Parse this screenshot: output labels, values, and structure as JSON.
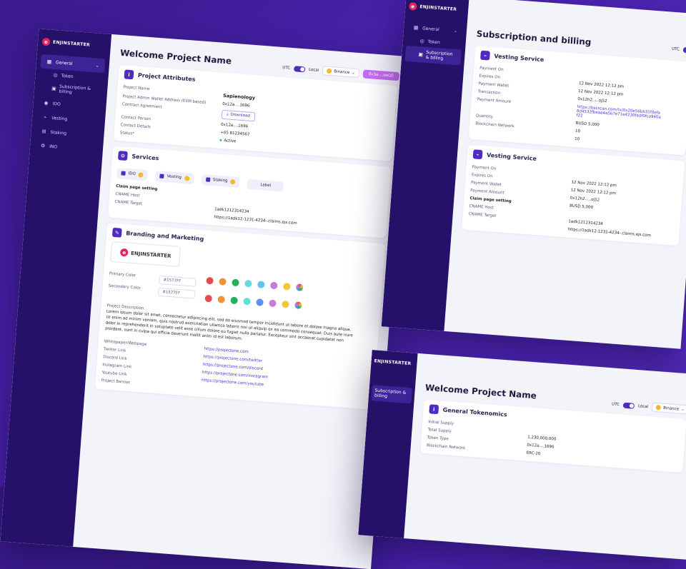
{
  "brand": "ENJINSTARTER",
  "nav": {
    "general": "General",
    "token": "Token",
    "subscription": "Subscription & billing",
    "ido": "IDO",
    "vesting": "Vesting",
    "staking": "Staking",
    "ino": "INO"
  },
  "header": {
    "utc": "UTC",
    "local": "Local",
    "network": "Binance",
    "wallet": "0x3a....oeQE"
  },
  "screen1": {
    "title": "Welcome Project Name",
    "attributes": {
      "heading": "Project Attributes",
      "labels": [
        "Project Name",
        "Project Admin Wallet Address (EVM based)",
        "Contract Agreement",
        "Contact Person",
        "Contact Details",
        "Status*"
      ],
      "project_name": "Sapienology",
      "wallet": "0x12a....1696",
      "download": "Download",
      "person": "0x12a....1696",
      "details": "+65 81234567",
      "status": "Active"
    },
    "services": {
      "heading": "Services",
      "items": [
        "IDO",
        "Vesting",
        "Staking",
        "Label"
      ],
      "claim_label": "Claim page setting",
      "cname_host_label": "CNAME Host",
      "cname_target_label": "CNAME Target",
      "cname_host": "1adk1212314234",
      "cname_target": "https://1adk12-1231-4234-.claims.ejs.com"
    },
    "branding": {
      "heading": "Branding and Marketing",
      "primary_label": "Primary Color",
      "secondary_label": "Secondary Color",
      "primary": "#1577FF",
      "secondary": "#1577FF",
      "desc_label": "Project Description",
      "description": "Lorem ipsum dolor sit amet, consectetur adipiscing elit, sed do eiusmod tempor incididunt ut labore et dolore magna aliqua. Ut enim ad minim veniam, quis nostrud exercitation ullamco laboris nisi ut aliquip ex ea commodo consequat. Duis aute irure dolor in reprehenderit in voluptate velit esse cillum dolore eu fugiat nulla pariatur. Excepteur sint occaecat cupidatat non proident, sunt in culpa qui officia deserunt mollit anim id est laborum.",
      "link_labels": [
        "Whitepaper/Webpage",
        "Twitter Link",
        "Discord Link",
        "Instagram Link",
        "Youtube Link",
        "Project Banner"
      ],
      "links": [
        "https://projectone.com",
        "https://projectone.com/twitter",
        "https://projectone.com/discord",
        "https://projectone.com/instagram",
        "https://projectone.com/youtube"
      ]
    },
    "palette1": [
      "#e74c4c",
      "#f0913c",
      "#27ae60",
      "#62d8e0",
      "#5bc8f0",
      "#c77ae0",
      "#f3c43c"
    ],
    "palette2": [
      "#e74c4c",
      "#f0913c",
      "#27ae60",
      "#62e0d0",
      "#5b8ff0",
      "#c77ae0",
      "#f3c43c"
    ]
  },
  "screen2": {
    "title": "Subscription and billing",
    "vesting1": {
      "heading": "Vesting Service",
      "labels": [
        "Payment On",
        "Expires On",
        "Payment Wallet",
        "Transaction",
        "Payment Amount",
        "Quantity",
        "Blockchain Network"
      ],
      "values": [
        "12 Nov 2022 12:12 pm",
        "12 Nov 2022 12:12 pm",
        "0x12h2.....oj52",
        "https://bscscan.com/tx/0x20e56bb31f0efa8d4532fbeae4a5b7e71e4230fadf0fca940af22",
        "BUSD 5,000",
        "10",
        "10"
      ]
    },
    "vesting2": {
      "heading": "Vesting Service",
      "labels": [
        "Payment On",
        "Expires On",
        "Payment Wallet",
        "Payment Amount",
        "Claim page setting",
        "CNAME Host",
        "CNAME Target"
      ],
      "values": [
        "12 Nov 2022 12:12 pm",
        "12 Nov 2022 12:12 pm",
        "0x12h2.....oj52",
        "BUSD 5,000",
        "",
        "1adk1212314234",
        "https://1adk12-1231-4234-.claims.ejs.com"
      ]
    }
  },
  "screen3": {
    "title": "Welcome Project Name",
    "heading": "General Tokenomics",
    "labels": [
      "Initial Supply",
      "Total Supply",
      "Token Type",
      "Blockchain Network"
    ],
    "values": [
      "1,230,000,000",
      "0x12a....1696",
      "ERC-20"
    ]
  }
}
